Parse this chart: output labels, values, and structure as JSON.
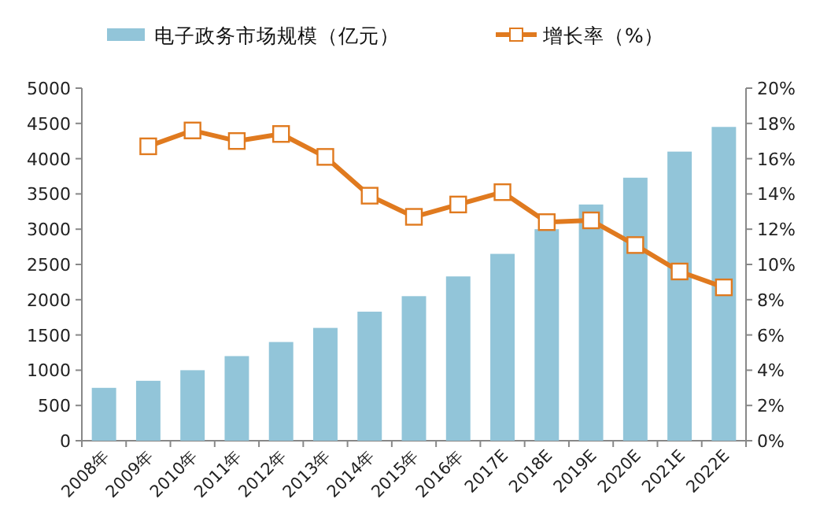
{
  "chart_data": {
    "type": "bar",
    "categories": [
      "2008年",
      "2009年",
      "2010年",
      "2011年",
      "2012年",
      "2013年",
      "2014年",
      "2015年",
      "2016年",
      "2017E",
      "2018E",
      "2019E",
      "2020E",
      "2021E",
      "2022E"
    ],
    "series": [
      {
        "name": "电子政务市场规模（亿元）",
        "color": "#92c5d9",
        "values": [
          750,
          850,
          1000,
          1200,
          1400,
          1600,
          1830,
          2050,
          2330,
          2650,
          3000,
          3350,
          3730,
          4100,
          4450
        ]
      },
      {
        "name": "增长率（%）",
        "type": "line",
        "axis": "y2",
        "color": "#e07a1f",
        "marker": "square",
        "values": [
          null,
          16.7,
          17.6,
          17.0,
          17.4,
          16.1,
          13.9,
          12.7,
          13.4,
          14.1,
          12.4,
          12.5,
          11.1,
          9.6,
          8.7
        ]
      }
    ],
    "ylim": [
      0,
      5000
    ],
    "yticks": [
      0,
      500,
      1000,
      1500,
      2000,
      2500,
      3000,
      3500,
      4000,
      4500,
      5000
    ],
    "y2lim": [
      0,
      20
    ],
    "y2ticks": [
      {
        "value": 0,
        "label": "0%"
      },
      {
        "value": 2,
        "label": "2%"
      },
      {
        "value": 4,
        "label": "4%"
      },
      {
        "value": 6,
        "label": "6%"
      },
      {
        "value": 8,
        "label": "8%"
      },
      {
        "value": 10,
        "label": "10%"
      },
      {
        "value": 12,
        "label": "12%"
      },
      {
        "value": 14,
        "label": "14%"
      },
      {
        "value": 16,
        "label": "16%"
      },
      {
        "value": 18,
        "label": "18%"
      },
      {
        "value": 20,
        "label": "20%"
      }
    ],
    "grid": false,
    "legend": "top"
  }
}
